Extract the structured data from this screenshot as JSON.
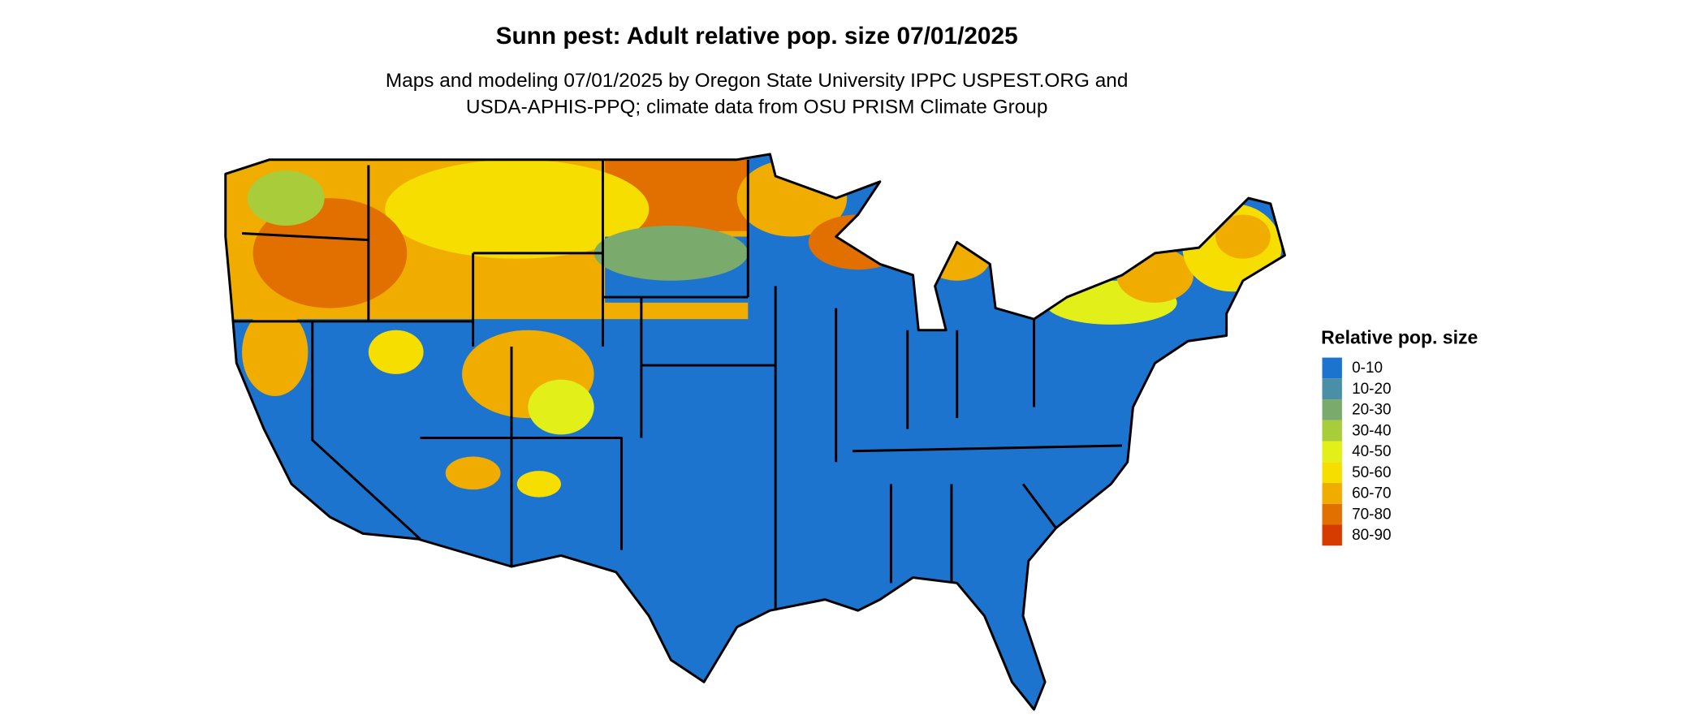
{
  "title": "Sunn pest: Adult relative pop. size 07/01/2025",
  "subtitle": [
    "Maps and modeling 07/01/2025 by Oregon State University IPPC USPEST.ORG and",
    "USDA-APHIS-PPQ; climate data from OSU PRISM Climate Group"
  ],
  "legend": {
    "title": "Relative pop. size",
    "items": [
      {
        "label": "0-10",
        "color": "#1c74cf"
      },
      {
        "label": "10-20",
        "color": "#4b8fa6"
      },
      {
        "label": "20-30",
        "color": "#7aab6c"
      },
      {
        "label": "30-40",
        "color": "#a9cc3a"
      },
      {
        "label": "40-50",
        "color": "#e2ef18"
      },
      {
        "label": "50-60",
        "color": "#f6df00"
      },
      {
        "label": "60-70",
        "color": "#f0ad00"
      },
      {
        "label": "70-80",
        "color": "#e27000"
      },
      {
        "label": "80-90",
        "color": "#d63b00"
      }
    ]
  }
}
